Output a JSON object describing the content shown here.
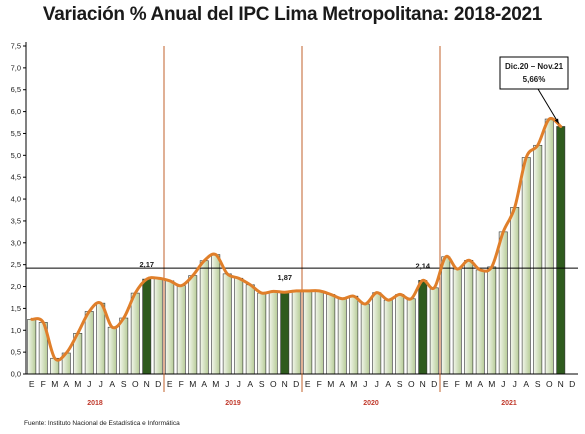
{
  "chart_data": {
    "type": "bar",
    "title": "Variación % Anual del IPC Lima Metropolitana: 2018-2021",
    "years": [
      "2018",
      "2019",
      "2020",
      "2021"
    ],
    "month_labels": [
      "E",
      "F",
      "M",
      "A",
      "M",
      "J",
      "J",
      "A",
      "S",
      "O",
      "N",
      "D"
    ],
    "ylim": [
      0,
      7.5
    ],
    "yticks": [
      "0,0",
      "0,5",
      "1,0",
      "1,5",
      "2,0",
      "2,5",
      "3,0",
      "3,5",
      "4,0",
      "4,5",
      "5,0",
      "5,5",
      "6,0",
      "6,5",
      "7,0",
      "7,5"
    ],
    "reference_line": 2.42,
    "series": [
      {
        "values": [
          1.25,
          1.18,
          0.36,
          0.48,
          0.93,
          1.43,
          1.62,
          1.07,
          1.28,
          1.85,
          2.17,
          2.19,
          2.13,
          2.02,
          2.25,
          2.59,
          2.73,
          2.29,
          2.19,
          2.04,
          1.85,
          1.89,
          1.87,
          1.9,
          1.9,
          1.9,
          1.82,
          1.72,
          1.78,
          1.6,
          1.86,
          1.69,
          1.82,
          1.72,
          2.14,
          1.97,
          2.68,
          2.4,
          2.6,
          2.38,
          2.45,
          3.25,
          3.81,
          4.95,
          5.23,
          5.83,
          5.66
        ]
      }
    ],
    "highlighted_bars": [
      10,
      22,
      34,
      46
    ],
    "data_labels": [
      {
        "index": 10,
        "text": "2,17"
      },
      {
        "index": 22,
        "text": "1,87"
      },
      {
        "index": 34,
        "text": "2,14"
      }
    ],
    "annotation": {
      "line1": "Dic.20 – Nov.21",
      "line2": "5,66%"
    },
    "colors": {
      "bar_fill_light": "#e4edd6",
      "bar_fill_dark": "#c2d6a8",
      "bar_highlight": "#2f5b1e",
      "bar_stroke": "#333333",
      "line": "#e07f2a",
      "year_divider": "#c0622b",
      "axis": "#000000"
    },
    "source": "Fuente: Instituto Nacional de Estadística e Informática"
  }
}
